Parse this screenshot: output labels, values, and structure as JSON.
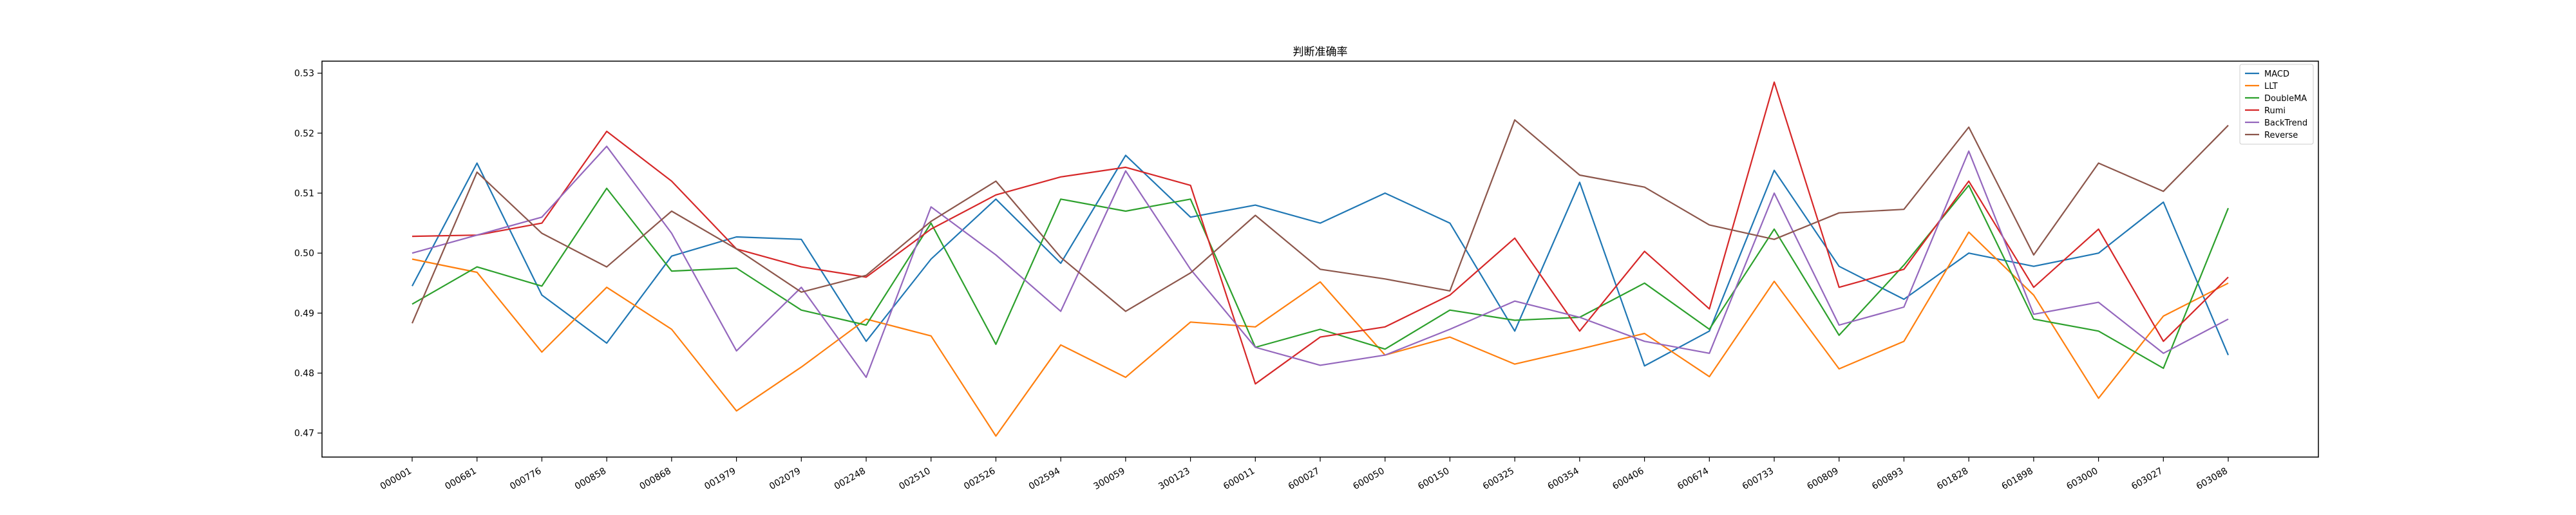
{
  "chart_data": {
    "type": "line",
    "title": "判断准确率",
    "xlabel": "",
    "ylabel": "",
    "ylim": [
      0.466,
      0.532
    ],
    "yticks": [
      0.47,
      0.48,
      0.49,
      0.5,
      0.51,
      0.52,
      0.53
    ],
    "ytick_labels": [
      "0.47",
      "0.48",
      "0.49",
      "0.50",
      "0.51",
      "0.52",
      "0.53"
    ],
    "grid": false,
    "legend_position": "top-right",
    "categories": [
      "000001",
      "000681",
      "000776",
      "000858",
      "000868",
      "001979",
      "002079",
      "002248",
      "002510",
      "002526",
      "002594",
      "300059",
      "300123",
      "600011",
      "600027",
      "600050",
      "600150",
      "600325",
      "600354",
      "600406",
      "600674",
      "600733",
      "600809",
      "600893",
      "601828",
      "601898",
      "603000",
      "603027",
      "603088"
    ],
    "series": [
      {
        "name": "MACD",
        "color": "#1f77b4",
        "values": [
          0.4945,
          0.515,
          0.493,
          0.485,
          0.4995,
          0.5027,
          0.5023,
          0.4853,
          0.499,
          0.509,
          0.4983,
          0.5163,
          0.506,
          0.508,
          0.505,
          0.51,
          0.505,
          0.487,
          0.5118,
          0.4812,
          0.487,
          0.5138,
          0.4978,
          0.4923,
          0.5,
          0.4978,
          0.5,
          0.5085,
          0.483
        ]
      },
      {
        "name": "LLT",
        "color": "#ff7f0e",
        "values": [
          0.499,
          0.4968,
          0.4835,
          0.4943,
          0.4873,
          0.4737,
          0.481,
          0.489,
          0.4862,
          0.4695,
          0.4847,
          0.4793,
          0.4885,
          0.4877,
          0.4952,
          0.483,
          0.486,
          0.4815,
          0.484,
          0.4866,
          0.4794,
          0.4953,
          0.4807,
          0.4853,
          0.5035,
          0.493,
          0.4758,
          0.4895,
          0.495
        ]
      },
      {
        "name": "DoubleMA",
        "color": "#2ca02c",
        "values": [
          0.4915,
          0.4977,
          0.4945,
          0.5108,
          0.497,
          0.4975,
          0.4905,
          0.488,
          0.505,
          0.4848,
          0.509,
          0.507,
          0.509,
          0.4843,
          0.4873,
          0.484,
          0.4905,
          0.4888,
          0.4893,
          0.495,
          0.4873,
          0.504,
          0.4863,
          0.498,
          0.5113,
          0.489,
          0.487,
          0.4808,
          0.5075
        ]
      },
      {
        "name": "Rumi",
        "color": "#d62728",
        "values": [
          0.5028,
          0.503,
          0.505,
          0.5203,
          0.512,
          0.5007,
          0.4977,
          0.496,
          0.504,
          0.5097,
          0.5127,
          0.5143,
          0.5113,
          0.4782,
          0.486,
          0.4877,
          0.493,
          0.5025,
          0.487,
          0.5003,
          0.4907,
          0.5285,
          0.4943,
          0.4973,
          0.512,
          0.4943,
          0.504,
          0.4853,
          0.496
        ]
      },
      {
        "name": "BackTrend",
        "color": "#9467bd",
        "values": [
          0.5,
          0.503,
          0.506,
          0.5178,
          0.5033,
          0.4837,
          0.4943,
          0.4793,
          0.5077,
          0.4997,
          0.4903,
          0.5137,
          0.4973,
          0.4843,
          0.4813,
          0.483,
          0.4873,
          0.492,
          0.4893,
          0.4853,
          0.4833,
          0.51,
          0.488,
          0.491,
          0.517,
          0.4898,
          0.4918,
          0.4833,
          0.489
        ]
      },
      {
        "name": "Reverse",
        "color": "#8c564b",
        "values": [
          0.4883,
          0.5135,
          0.5033,
          0.4977,
          0.507,
          0.5007,
          0.4935,
          0.4963,
          0.5053,
          0.512,
          0.4993,
          0.4903,
          0.4967,
          0.5063,
          0.4973,
          0.4957,
          0.4937,
          0.5222,
          0.513,
          0.511,
          0.5047,
          0.5023,
          0.5067,
          0.5073,
          0.521,
          0.4997,
          0.515,
          0.5103,
          0.5213
        ]
      }
    ]
  }
}
